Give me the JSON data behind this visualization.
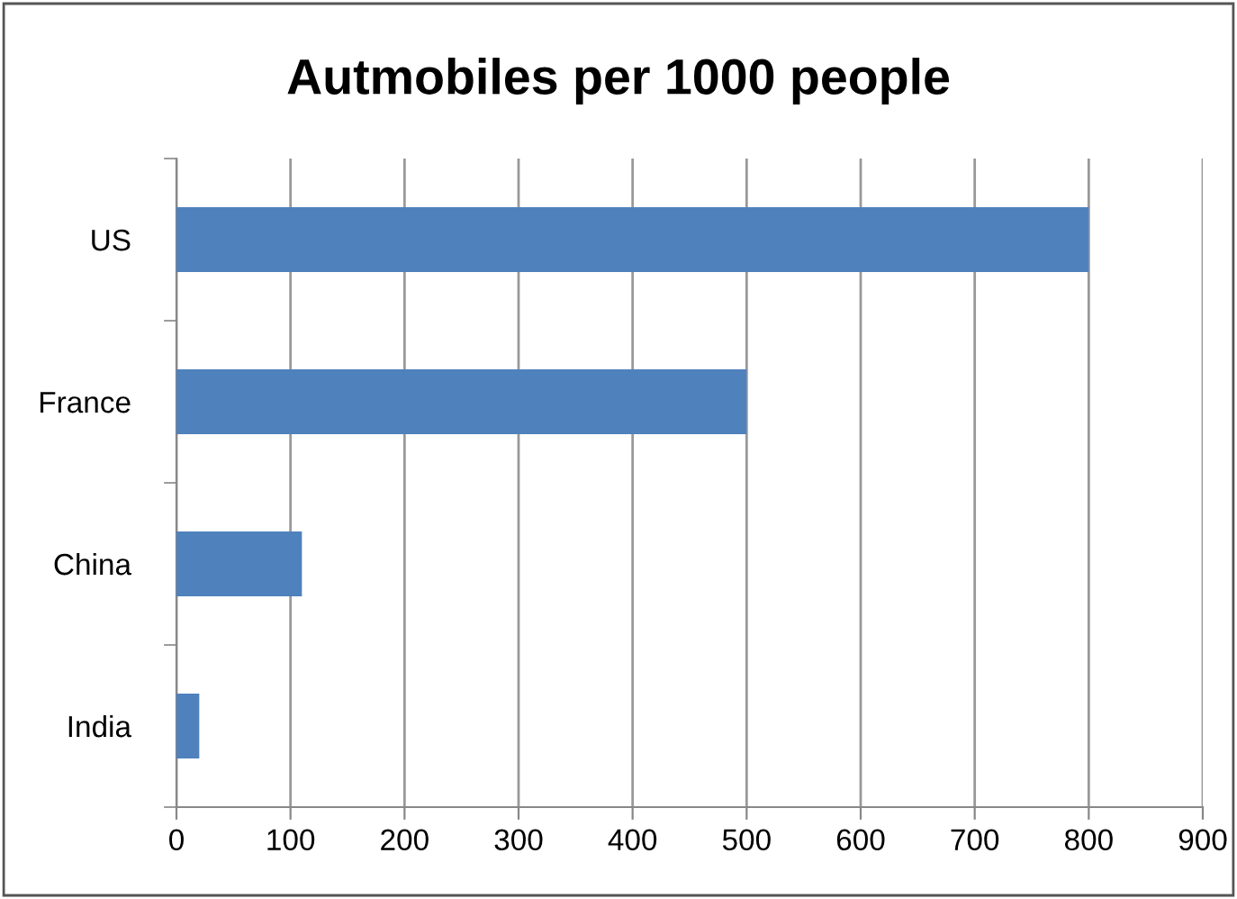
{
  "chart_data": {
    "type": "bar",
    "orientation": "horizontal",
    "title": "Autmobiles per 1000 people",
    "categories": [
      "US",
      "France",
      "China",
      "India"
    ],
    "values": [
      800,
      500,
      110,
      20
    ],
    "color": "#4f81bd",
    "xlim": [
      0,
      900
    ],
    "xticks": [
      0,
      100,
      200,
      300,
      400,
      500,
      600,
      700,
      800,
      900
    ],
    "grid": "x",
    "legend": false
  }
}
